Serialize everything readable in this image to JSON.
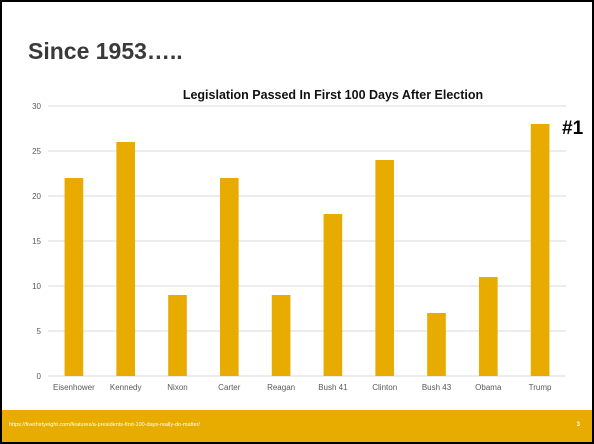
{
  "slide": {
    "heading": "Since 1953…..",
    "annotation": "#1",
    "source_link": "https://fivethirtyeight.com/features/a-presidents-first-100-days-really-do-matter/",
    "page_number": "3"
  },
  "colors": {
    "bar": "#e8ab00",
    "footer": "#e8ab00",
    "grid": "#d9d9d9",
    "tick_text": "#595959"
  },
  "chart_data": {
    "type": "bar",
    "title": "Legislation Passed In First 100 Days After Election",
    "xlabel": "",
    "ylabel": "",
    "categories": [
      "Eisenhower",
      "Kennedy",
      "Nixon",
      "Carter",
      "Reagan",
      "Bush 41",
      "Clinton",
      "Bush 43",
      "Obama",
      "Trump"
    ],
    "values": [
      22,
      26,
      9,
      22,
      9,
      18,
      24,
      7,
      11,
      28
    ],
    "ylim": [
      0,
      30
    ],
    "yticks": [
      0,
      5,
      10,
      15,
      20,
      25,
      30
    ],
    "grid": true,
    "legend": "none"
  }
}
